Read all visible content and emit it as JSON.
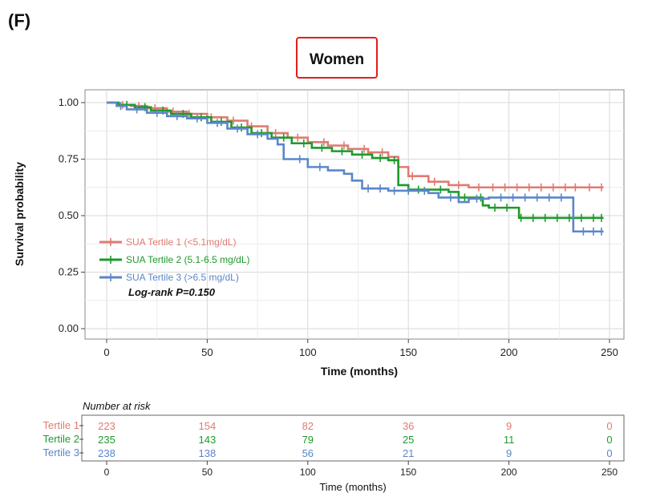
{
  "panel_label": "(F)",
  "chart_data": {
    "type": "line",
    "subtype": "kaplan-meier",
    "title": "Women",
    "xlabel": "Time (months)",
    "ylabel": "Survival probability",
    "xlim": [
      0,
      250
    ],
    "ylim": [
      0,
      1
    ],
    "x_ticks": [
      0,
      50,
      100,
      150,
      200,
      250
    ],
    "y_ticks": [
      0.0,
      0.25,
      0.5,
      0.75,
      1.0
    ],
    "y_tick_labels": [
      "0.00",
      "0.25",
      "0.50",
      "0.75",
      "1.00"
    ],
    "grid": true,
    "legend_position": "bottom-left",
    "annotation": "Log-rank P=0.150",
    "series": [
      {
        "name": "SUA Tertile 1 (<5.1mg/dL)",
        "color": "#e07b72",
        "steps": [
          [
            0,
            1.0
          ],
          [
            5,
            0.99
          ],
          [
            12,
            0.985
          ],
          [
            20,
            0.975
          ],
          [
            30,
            0.96
          ],
          [
            40,
            0.95
          ],
          [
            50,
            0.935
          ],
          [
            60,
            0.92
          ],
          [
            70,
            0.895
          ],
          [
            80,
            0.865
          ],
          [
            90,
            0.845
          ],
          [
            100,
            0.825
          ],
          [
            110,
            0.81
          ],
          [
            120,
            0.795
          ],
          [
            130,
            0.78
          ],
          [
            140,
            0.76
          ],
          [
            145,
            0.715
          ],
          [
            150,
            0.675
          ],
          [
            160,
            0.65
          ],
          [
            170,
            0.635
          ],
          [
            180,
            0.625
          ],
          [
            247,
            0.625
          ]
        ],
        "censor_x": [
          8,
          16,
          24,
          33,
          41,
          52,
          63,
          72,
          84,
          95,
          108,
          118,
          128,
          137,
          152,
          163,
          175,
          185,
          192,
          198,
          204,
          210,
          216,
          222,
          228,
          233,
          240,
          246
        ]
      },
      {
        "name": "SUA Tertile 2 (5.1-6.5 mg/dL)",
        "color": "#1e9a2c",
        "steps": [
          [
            0,
            1.0
          ],
          [
            6,
            0.99
          ],
          [
            14,
            0.98
          ],
          [
            22,
            0.965
          ],
          [
            32,
            0.95
          ],
          [
            42,
            0.935
          ],
          [
            52,
            0.915
          ],
          [
            62,
            0.89
          ],
          [
            72,
            0.865
          ],
          [
            82,
            0.845
          ],
          [
            92,
            0.82
          ],
          [
            102,
            0.8
          ],
          [
            112,
            0.785
          ],
          [
            122,
            0.77
          ],
          [
            132,
            0.755
          ],
          [
            140,
            0.745
          ],
          [
            145,
            0.635
          ],
          [
            150,
            0.615
          ],
          [
            170,
            0.605
          ],
          [
            175,
            0.58
          ],
          [
            187,
            0.545
          ],
          [
            190,
            0.535
          ],
          [
            205,
            0.49
          ],
          [
            247,
            0.49
          ]
        ],
        "censor_x": [
          10,
          19,
          28,
          38,
          47,
          57,
          67,
          77,
          88,
          98,
          107,
          117,
          127,
          136,
          143,
          155,
          166,
          178,
          186,
          193,
          199,
          206,
          212,
          218,
          224,
          230,
          236,
          242,
          246
        ]
      },
      {
        "name": "SUA Tertile 3 (>6.5 mg/dL)",
        "color": "#5b86c9",
        "steps": [
          [
            0,
            1.0
          ],
          [
            5,
            0.985
          ],
          [
            10,
            0.97
          ],
          [
            20,
            0.955
          ],
          [
            30,
            0.94
          ],
          [
            40,
            0.93
          ],
          [
            50,
            0.91
          ],
          [
            60,
            0.885
          ],
          [
            70,
            0.86
          ],
          [
            80,
            0.84
          ],
          [
            85,
            0.815
          ],
          [
            88,
            0.75
          ],
          [
            100,
            0.715
          ],
          [
            110,
            0.7
          ],
          [
            118,
            0.685
          ],
          [
            122,
            0.655
          ],
          [
            127,
            0.62
          ],
          [
            140,
            0.61
          ],
          [
            160,
            0.6
          ],
          [
            165,
            0.58
          ],
          [
            175,
            0.56
          ],
          [
            180,
            0.575
          ],
          [
            190,
            0.58
          ],
          [
            231,
            0.58
          ],
          [
            232,
            0.43
          ],
          [
            247,
            0.43
          ]
        ],
        "censor_x": [
          7,
          15,
          25,
          35,
          45,
          55,
          65,
          75,
          96,
          106,
          130,
          136,
          143,
          150,
          158,
          171,
          184,
          196,
          202,
          208,
          214,
          220,
          226,
          237,
          242,
          246
        ]
      }
    ]
  },
  "risk_table": {
    "title": "Number at risk",
    "xlabel": "Time (months)",
    "x_ticks": [
      0,
      50,
      100,
      150,
      200,
      250
    ],
    "rows": [
      {
        "label": "Tertile 1",
        "color": "#e07b72",
        "values": [
          "223",
          "154",
          "82",
          "36",
          "9",
          "0"
        ]
      },
      {
        "label": "Tertile 2",
        "color": "#1e9a2c",
        "values": [
          "235",
          "143",
          "79",
          "25",
          "11",
          "0"
        ]
      },
      {
        "label": "Tertile 3",
        "color": "#5b86c9",
        "values": [
          "238",
          "138",
          "56",
          "21",
          "9",
          "0"
        ]
      }
    ]
  }
}
